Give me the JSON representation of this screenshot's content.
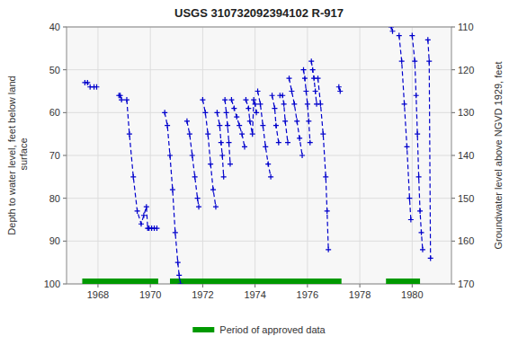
{
  "chart_data": {
    "type": "line",
    "title": "USGS 310732092394102 R-917",
    "y_label": "Depth to water level, feet below land\n surface",
    "y2_label": "Groundwater level above NGVD 1929, feet",
    "xlim": [
      1966.8,
      1981.5
    ],
    "xticks": [
      1968,
      1970,
      1972,
      1974,
      1976,
      1978,
      1980
    ],
    "ylim": [
      100,
      40
    ],
    "yticks": [
      40,
      50,
      60,
      70,
      80,
      90,
      100
    ],
    "y2lim": [
      170,
      110
    ],
    "y2ticks": [
      170,
      160,
      150,
      140,
      130,
      120,
      110
    ],
    "grid": true,
    "legend": "bottom",
    "color": "#0000cc",
    "line_style": "dashed",
    "marker": "plus",
    "spans": {
      "name": "Period of approved data",
      "color": "#009900",
      "ranges": [
        [
          1967.4,
          1970.3
        ],
        [
          1970.75,
          1977.3
        ],
        [
          1979.0,
          1980.3
        ]
      ]
    },
    "series": [
      {
        "x": [
          1967.5,
          1967.6,
          1967.7,
          1967.85,
          1967.95
        ],
        "values": [
          53,
          53,
          54,
          54,
          54
        ]
      },
      {
        "x": [
          1968.8,
          1968.85,
          1968.9
        ],
        "values": [
          56,
          56,
          57
        ]
      },
      {
        "x": [
          1969.1,
          1969.2,
          1969.35,
          1969.5,
          1969.65,
          1969.75,
          1969.85,
          1969.9
        ],
        "values": [
          57,
          65,
          75,
          83,
          86,
          84,
          82,
          87
        ]
      },
      {
        "x": [
          1969.95,
          1970.05,
          1970.15,
          1970.25
        ],
        "values": [
          87,
          87,
          87,
          87
        ]
      },
      {
        "x": [
          1970.55,
          1970.65,
          1970.75,
          1970.85,
          1970.95,
          1971.05,
          1971.1,
          1971.15
        ],
        "values": [
          60,
          63,
          70,
          78,
          88,
          95,
          98,
          100
        ]
      },
      {
        "x": [
          1971.4,
          1971.5,
          1971.6,
          1971.7,
          1971.8,
          1971.85
        ],
        "values": [
          62,
          65,
          70,
          75,
          80,
          82
        ]
      },
      {
        "x": [
          1972.0,
          1972.1,
          1972.2,
          1972.3,
          1972.4,
          1972.5
        ],
        "values": [
          57,
          60,
          65,
          72,
          78,
          82
        ]
      },
      {
        "x": [
          1972.55,
          1972.65,
          1972.7,
          1972.75,
          1972.8
        ],
        "values": [
          60,
          63,
          67,
          70,
          75
        ]
      },
      {
        "x": [
          1972.85,
          1972.9,
          1972.95,
          1973.0,
          1973.05
        ],
        "values": [
          57,
          60,
          63,
          67,
          72
        ]
      },
      {
        "x": [
          1973.1,
          1973.2,
          1973.3,
          1973.4,
          1973.5,
          1973.6
        ],
        "values": [
          57,
          59,
          61,
          63,
          65,
          68
        ]
      },
      {
        "x": [
          1973.65,
          1973.75,
          1973.8,
          1973.9,
          1973.95,
          1974.0,
          1974.05
        ],
        "values": [
          57,
          59,
          62,
          65,
          57,
          58,
          60
        ]
      },
      {
        "x": [
          1974.1,
          1974.2,
          1974.3,
          1974.4,
          1974.5,
          1974.6
        ],
        "values": [
          55,
          58,
          63,
          68,
          72,
          75
        ]
      },
      {
        "x": [
          1974.65,
          1974.75,
          1974.8,
          1974.9
        ],
        "values": [
          56,
          59,
          63,
          67
        ]
      },
      {
        "x": [
          1974.95,
          1975.05,
          1975.1,
          1975.15,
          1975.25
        ],
        "values": [
          56,
          56,
          58,
          62,
          67
        ]
      },
      {
        "x": [
          1975.3,
          1975.4,
          1975.5,
          1975.6,
          1975.7,
          1975.8
        ],
        "values": [
          52,
          55,
          58,
          62,
          66,
          70
        ]
      },
      {
        "x": [
          1975.85,
          1975.9,
          1975.95,
          1976.0,
          1976.05,
          1976.1
        ],
        "values": [
          50,
          52,
          55,
          58,
          62,
          67
        ]
      },
      {
        "x": [
          1976.15,
          1976.2,
          1976.25,
          1976.3,
          1976.35
        ],
        "values": [
          48,
          50,
          52,
          55,
          58
        ]
      },
      {
        "x": [
          1976.4,
          1976.5,
          1976.6,
          1976.7,
          1976.75,
          1976.8
        ],
        "values": [
          52,
          58,
          65,
          75,
          83,
          92
        ]
      },
      {
        "x": [
          1977.2,
          1977.25
        ],
        "values": [
          54,
          55
        ]
      },
      {
        "x": [
          1979.2,
          1979.25
        ],
        "values": [
          40,
          41
        ]
      },
      {
        "x": [
          1979.5,
          1979.6,
          1979.7,
          1979.8,
          1979.9,
          1979.95
        ],
        "values": [
          42,
          48,
          58,
          68,
          80,
          85
        ]
      },
      {
        "x": [
          1980.0,
          1980.1,
          1980.15,
          1980.2,
          1980.25,
          1980.3,
          1980.35,
          1980.4
        ],
        "values": [
          42,
          48,
          56,
          65,
          75,
          83,
          88,
          92
        ]
      },
      {
        "x": [
          1980.6,
          1980.65,
          1980.7
        ],
        "values": [
          43,
          48,
          94
        ]
      }
    ]
  }
}
